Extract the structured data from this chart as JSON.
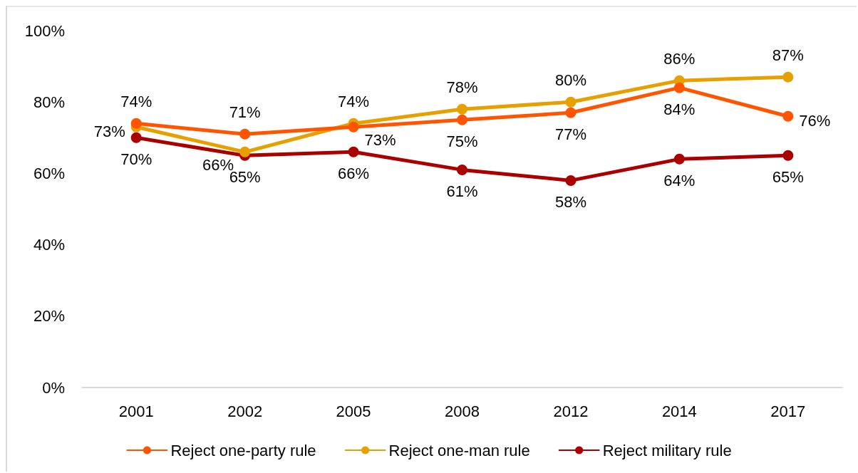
{
  "chart_data": {
    "type": "line",
    "categories": [
      "2001",
      "2002",
      "2005",
      "2008",
      "2012",
      "2014",
      "2017"
    ],
    "series": [
      {
        "name": "Reject one-party rule",
        "color": "#ff5500",
        "values": [
          74,
          71,
          73,
          75,
          77,
          84,
          76
        ],
        "value_labels": [
          "74%",
          "71%",
          "73%",
          "75%",
          "77%",
          "84%",
          "76%"
        ]
      },
      {
        "name": "Reject one-man rule",
        "color": "#e6a000",
        "values": [
          73,
          66,
          74,
          78,
          80,
          86,
          87
        ],
        "value_labels": [
          "73%",
          "66%",
          "74%",
          "78%",
          "80%",
          "86%",
          "87%"
        ]
      },
      {
        "name": "Reject military rule",
        "color": "#aa0000",
        "values": [
          70,
          65,
          66,
          61,
          58,
          64,
          65
        ],
        "value_labels": [
          "70%",
          "65%",
          "66%",
          "61%",
          "58%",
          "64%",
          "65%"
        ]
      }
    ],
    "ylim": [
      0,
      100
    ],
    "yticks": [
      {
        "value": 0,
        "label": "0%"
      },
      {
        "value": 20,
        "label": "20%"
      },
      {
        "value": 40,
        "label": "40%"
      },
      {
        "value": 60,
        "label": "60%"
      },
      {
        "value": 80,
        "label": "80%"
      },
      {
        "value": 100,
        "label": "100%"
      }
    ],
    "grid": false,
    "legend": "bottom",
    "marker": "circle",
    "line_style": "solid"
  }
}
